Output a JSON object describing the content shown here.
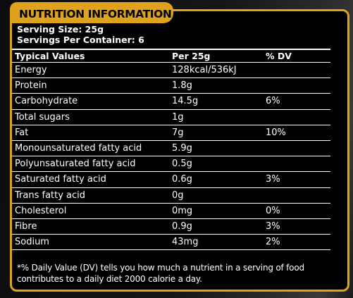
{
  "title": "NUTRITION INFORMATION",
  "serving": {
    "size": "Serving Size: 25g",
    "per_container": "Servings Per Container: 6"
  },
  "table": {
    "headers": [
      "Typical Values",
      "Per 25g",
      "% DV"
    ],
    "rows": [
      [
        "Energy",
        "128kcal/536kJ",
        ""
      ],
      [
        "Protein",
        "1.8g",
        ""
      ],
      [
        "Carbohydrate",
        "14.5g",
        "6%"
      ],
      [
        "Total sugars",
        "1g",
        ""
      ],
      [
        "Fat",
        "7g",
        "10%"
      ],
      [
        "Monounsaturated fatty acid",
        "5.9g",
        ""
      ],
      [
        "Polyunsaturated fatty acid",
        "0.5g",
        ""
      ],
      [
        "Saturated fatty acid",
        "0.6g",
        "3%"
      ],
      [
        "Trans fatty acid",
        "0g",
        ""
      ],
      [
        "Cholesterol",
        "0mg",
        "0%"
      ],
      [
        "Fibre",
        "0.9g",
        "3%"
      ],
      [
        "Sodium",
        "43mg",
        "2%"
      ]
    ]
  },
  "footnote": "*% Daily Value (DV) tells you how much a nutrient in a serving of food contributes to a daily diet 2000 calorie a day.",
  "colors": {
    "accent": "#e0a21c",
    "panel": "#000000",
    "text": "#ffffff"
  }
}
